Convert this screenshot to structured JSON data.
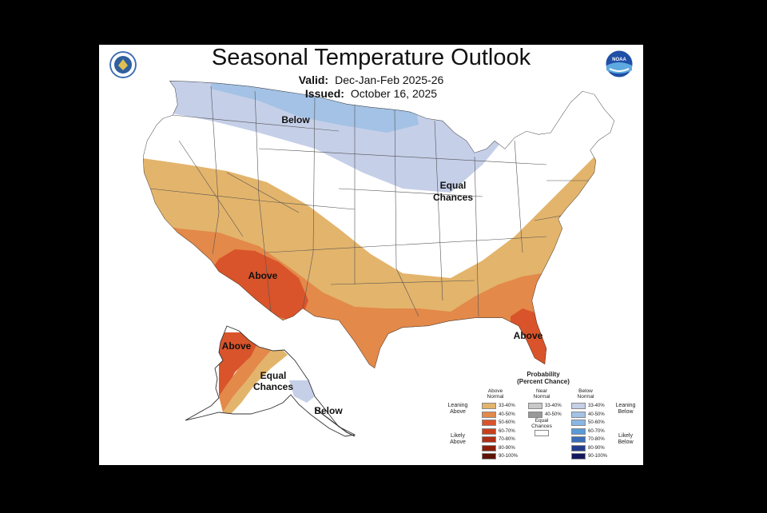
{
  "title": "Seasonal Temperature Outlook",
  "valid_label": "Valid:",
  "valid_value": "Dec-Jan-Feb 2025-26",
  "issued_label": "Issued:",
  "issued_value": "October 16, 2025",
  "logos": {
    "left": "doc-seal-icon",
    "right": "noaa-logo-icon",
    "noaa_text": "NOAA"
  },
  "map_labels": {
    "below": "Below",
    "equal1": "Equal",
    "equal2": "Chances",
    "above_sw": "Above",
    "above_fl": "Above",
    "above_ak": "Above",
    "ak_equal1": "Equal",
    "ak_equal2": "Chances",
    "ak_below": "Below"
  },
  "colors": {
    "above_33_40": "#e3b46b",
    "above_40_50": "#e3894a",
    "above_50_60": "#d9542a",
    "below_33_40": "#c5cfe8",
    "below_40_50": "#a3c2e5"
  },
  "legend": {
    "title1": "Probability",
    "title2": "(Percent Chance)",
    "above_head1": "Above",
    "above_head2": "Normal",
    "near_head1": "Near",
    "near_head2": "Normal",
    "below_head1": "Below",
    "below_head2": "Normal",
    "leaning_above1": "Leaning",
    "leaning_above2": "Above",
    "likely_above1": "Likely",
    "likely_above2": "Above",
    "leaning_below1": "Leaning",
    "leaning_below2": "Below",
    "likely_below1": "Likely",
    "likely_below2": "Below",
    "equal1": "Equal",
    "equal2": "Chances",
    "above_bins": [
      {
        "label": "33-40%",
        "color": "#e3b46b"
      },
      {
        "label": "40-50%",
        "color": "#e3894a"
      },
      {
        "label": "50-60%",
        "color": "#d9542a"
      },
      {
        "label": "60-70%",
        "color": "#c7401d"
      },
      {
        "label": "70-80%",
        "color": "#b02e14"
      },
      {
        "label": "80-90%",
        "color": "#8c1f0c"
      },
      {
        "label": "90-100%",
        "color": "#5e1406"
      }
    ],
    "near_bins": [
      {
        "label": "33-40%",
        "color": "#c8c8c8"
      },
      {
        "label": "40-50%",
        "color": "#999999"
      }
    ],
    "below_bins": [
      {
        "label": "33-40%",
        "color": "#c5cfe8"
      },
      {
        "label": "40-50%",
        "color": "#a3c2e5"
      },
      {
        "label": "50-60%",
        "color": "#8ab6e4"
      },
      {
        "label": "60-70%",
        "color": "#5a9ad8"
      },
      {
        "label": "70-80%",
        "color": "#3a6db8"
      },
      {
        "label": "80-90%",
        "color": "#233c8c"
      },
      {
        "label": "90-100%",
        "color": "#15175e"
      }
    ]
  }
}
